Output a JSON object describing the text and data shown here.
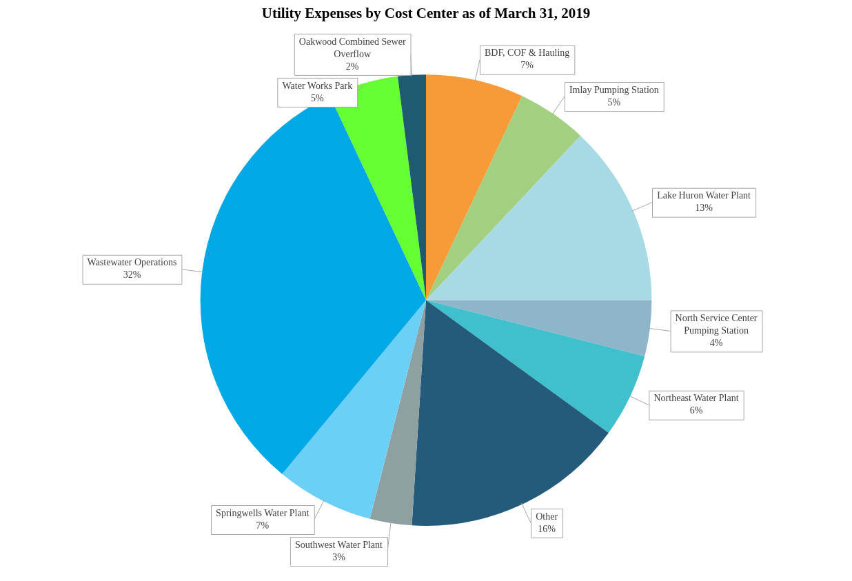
{
  "chart_data": {
    "type": "pie",
    "title": "Utility Expenses by Cost Center as of March 31, 2019",
    "categories": [
      "BDF, COF & Hauling",
      "Imlay Pumping Station",
      "Lake Huron Water Plant",
      "North Service Center Pumping Station",
      "Northeast Water Plant",
      "Other",
      "Southwest Water Plant",
      "Springwells Water Plant",
      "Wastewater Operations",
      "Water Works Park",
      "Oakwood Combined Sewer Overflow"
    ],
    "values": [
      7,
      5,
      13,
      4,
      6,
      16,
      3,
      7,
      32,
      5,
      2
    ],
    "colors": [
      "#f79a38",
      "#a2d080",
      "#a8dae6",
      "#8fb5c8",
      "#40c0cc",
      "#245a7a",
      "#8fa0a0",
      "#6ccff5",
      "#00a8e6",
      "#66ff33",
      "#1f5a70"
    ],
    "value_labels": [
      "7%",
      "5%",
      "13%",
      "4%",
      "6%",
      "16%",
      "3%",
      "7%",
      "32%",
      "5%",
      "2%"
    ],
    "legend": false
  }
}
